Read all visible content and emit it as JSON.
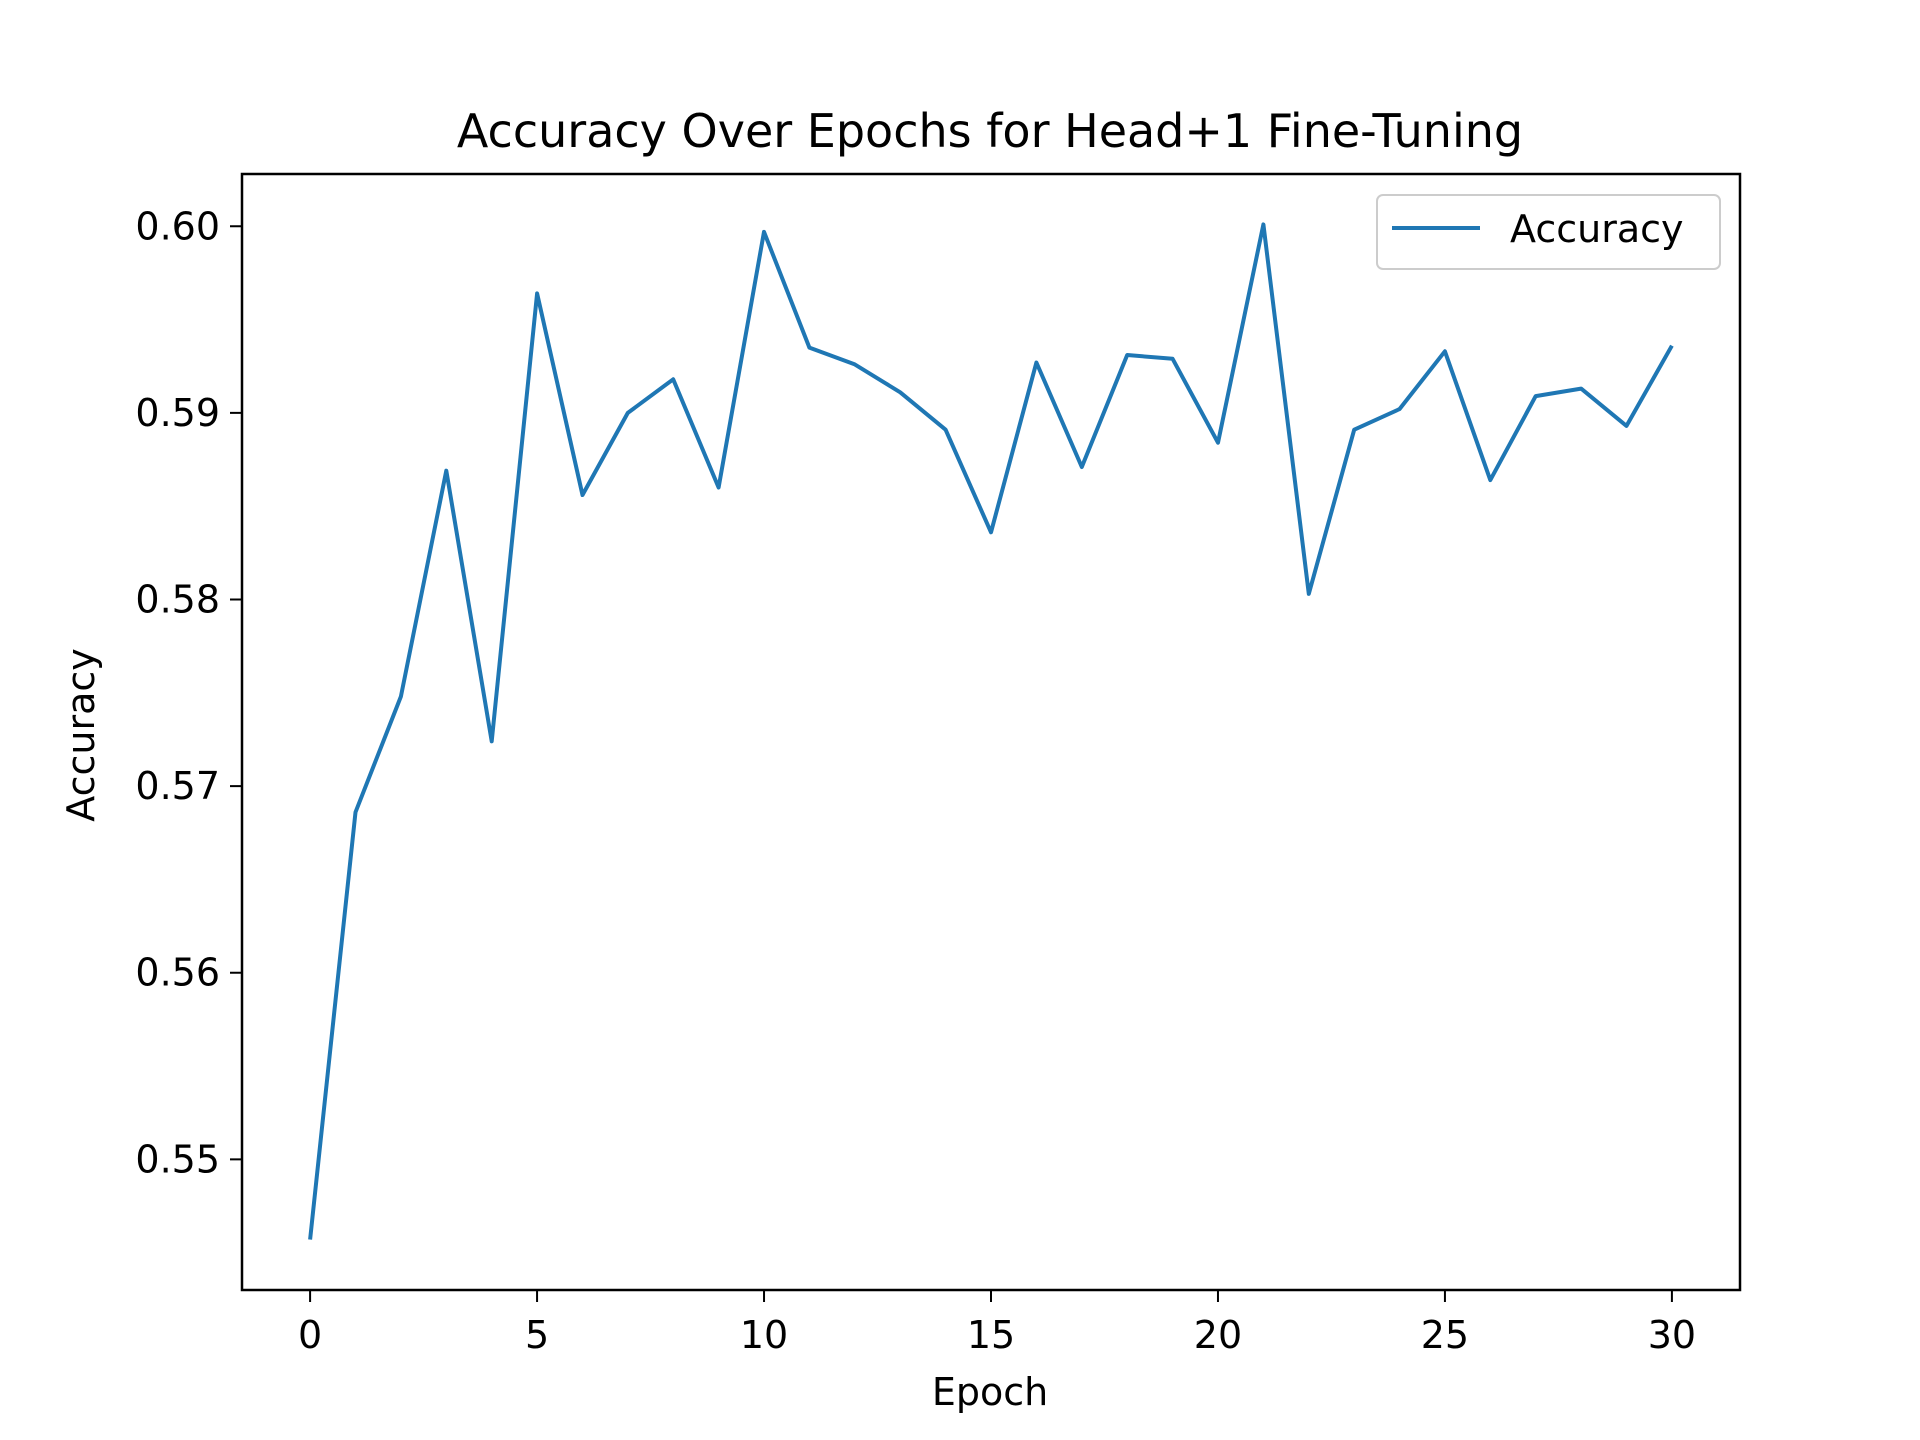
{
  "chart_data": {
    "type": "line",
    "title": "Accuracy Over Epochs for Head+1 Fine-Tuning",
    "xlabel": "Epoch",
    "ylabel": "Accuracy",
    "xlim": [
      -1.5,
      31.5
    ],
    "ylim": [
      0.543,
      0.6028
    ],
    "xticks": [
      0,
      5,
      10,
      15,
      20,
      25,
      30
    ],
    "xtick_labels": [
      "0",
      "5",
      "10",
      "15",
      "20",
      "25",
      "30"
    ],
    "yticks": [
      0.55,
      0.56,
      0.57,
      0.58,
      0.59,
      0.6
    ],
    "ytick_labels": [
      "0.55",
      "0.56",
      "0.57",
      "0.58",
      "0.59",
      "0.60"
    ],
    "grid": false,
    "legend_position": "top-right",
    "series": [
      {
        "name": "Accuracy",
        "color": "#1f77b4",
        "x": [
          0,
          1,
          2,
          3,
          4,
          5,
          6,
          7,
          8,
          9,
          10,
          11,
          12,
          13,
          14,
          15,
          16,
          17,
          18,
          19,
          20,
          21,
          22,
          23,
          24,
          25,
          26,
          27,
          28,
          29,
          30
        ],
        "y": [
          0.5457,
          0.5686,
          0.5748,
          0.5869,
          0.5724,
          0.5964,
          0.5856,
          0.59,
          0.5918,
          0.586,
          0.5997,
          0.5935,
          0.5926,
          0.5911,
          0.5891,
          0.5836,
          0.5927,
          0.5871,
          0.5931,
          0.5929,
          0.5884,
          0.6001,
          0.5803,
          0.5891,
          0.5902,
          0.5933,
          0.5864,
          0.5909,
          0.5913,
          0.5893,
          0.5936
        ]
      }
    ]
  }
}
